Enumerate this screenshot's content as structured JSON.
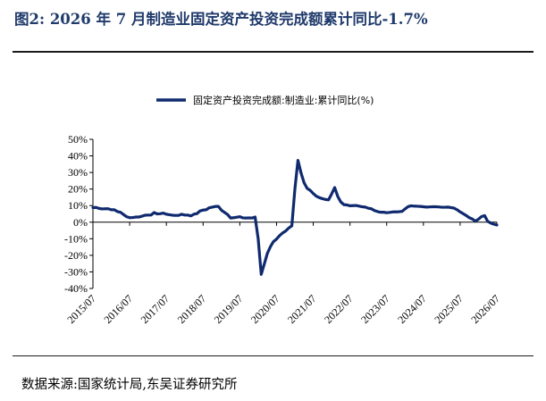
{
  "figure": {
    "title": "图2:  2026 年 7 月制造业固定资产投资完成额累计同比-1.7%",
    "source": "数据来源:国家统计局,东吴证券研究所"
  },
  "colors": {
    "line": "#0f2a6e",
    "title": "#1f3a6b"
  },
  "chart_data": {
    "type": "line",
    "title": "",
    "xlabel": "",
    "ylabel": "",
    "ylim": [
      -40,
      50
    ],
    "grid": false,
    "legend_position": "top-center",
    "y_tick_labels": [
      "50%",
      "40%",
      "30%",
      "20%",
      "10%",
      "0%",
      "-10%",
      "-20%",
      "-30%",
      "-40%"
    ],
    "y_tick_values": [
      50,
      40,
      30,
      20,
      10,
      0,
      -10,
      -20,
      -30,
      -40
    ],
    "x_tick_labels": [
      "2015/07",
      "2016/07",
      "2017/07",
      "2018/07",
      "2019/07",
      "2020/07",
      "2021/07",
      "2022/07",
      "2023/07",
      "2024/07",
      "2025/07",
      "2026/07"
    ],
    "x_range": [
      "2015/07",
      "2026/07"
    ],
    "series": [
      {
        "name": "固定资产投资完成额:制造业:累计同比(%)",
        "points": [
          [
            "2015/07",
            8.8
          ],
          [
            "2015/08",
            8.9
          ],
          [
            "2015/09",
            8.3
          ],
          [
            "2015/10",
            8.0
          ],
          [
            "2015/11",
            8.1
          ],
          [
            "2015/12",
            8.1
          ],
          [
            "2016/01",
            7.5
          ],
          [
            "2016/02",
            7.5
          ],
          [
            "2016/03",
            6.4
          ],
          [
            "2016/04",
            6.0
          ],
          [
            "2016/05",
            4.6
          ],
          [
            "2016/06",
            3.3
          ],
          [
            "2016/07",
            2.7
          ],
          [
            "2016/08",
            2.8
          ],
          [
            "2016/09",
            3.1
          ],
          [
            "2016/10",
            3.1
          ],
          [
            "2016/11",
            3.6
          ],
          [
            "2016/12",
            4.2
          ],
          [
            "2017/01",
            4.3
          ],
          [
            "2017/02",
            4.3
          ],
          [
            "2017/03",
            5.8
          ],
          [
            "2017/04",
            5.0
          ],
          [
            "2017/05",
            5.1
          ],
          [
            "2017/06",
            5.5
          ],
          [
            "2017/07",
            4.8
          ],
          [
            "2017/08",
            4.5
          ],
          [
            "2017/09",
            4.2
          ],
          [
            "2017/10",
            4.1
          ],
          [
            "2017/11",
            4.1
          ],
          [
            "2017/12",
            4.8
          ],
          [
            "2018/01",
            4.3
          ],
          [
            "2018/02",
            4.3
          ],
          [
            "2018/03",
            3.8
          ],
          [
            "2018/04",
            4.8
          ],
          [
            "2018/05",
            5.2
          ],
          [
            "2018/06",
            6.8
          ],
          [
            "2018/07",
            7.3
          ],
          [
            "2018/08",
            7.5
          ],
          [
            "2018/09",
            8.7
          ],
          [
            "2018/10",
            9.1
          ],
          [
            "2018/11",
            9.5
          ],
          [
            "2018/12",
            9.5
          ],
          [
            "2019/01",
            7.2
          ],
          [
            "2019/02",
            5.9
          ],
          [
            "2019/03",
            4.6
          ],
          [
            "2019/04",
            2.5
          ],
          [
            "2019/05",
            2.7
          ],
          [
            "2019/06",
            3.0
          ],
          [
            "2019/07",
            3.3
          ],
          [
            "2019/08",
            2.6
          ],
          [
            "2019/09",
            2.5
          ],
          [
            "2019/10",
            2.6
          ],
          [
            "2019/11",
            2.5
          ],
          [
            "2019/12",
            3.1
          ],
          [
            "2020/01",
            -10.0
          ],
          [
            "2020/02",
            -31.5
          ],
          [
            "2020/03",
            -25.2
          ],
          [
            "2020/04",
            -18.8
          ],
          [
            "2020/05",
            -14.8
          ],
          [
            "2020/06",
            -11.7
          ],
          [
            "2020/07",
            -10.2
          ],
          [
            "2020/08",
            -8.1
          ],
          [
            "2020/09",
            -6.5
          ],
          [
            "2020/10",
            -5.3
          ],
          [
            "2020/11",
            -3.5
          ],
          [
            "2020/12",
            -2.2
          ],
          [
            "2021/01",
            20.0
          ],
          [
            "2021/02",
            37.3
          ],
          [
            "2021/03",
            29.8
          ],
          [
            "2021/04",
            23.8
          ],
          [
            "2021/05",
            20.4
          ],
          [
            "2021/06",
            19.2
          ],
          [
            "2021/07",
            17.3
          ],
          [
            "2021/08",
            15.7
          ],
          [
            "2021/09",
            14.8
          ],
          [
            "2021/10",
            14.2
          ],
          [
            "2021/11",
            13.7
          ],
          [
            "2021/12",
            13.5
          ],
          [
            "2022/01",
            17.0
          ],
          [
            "2022/02",
            20.9
          ],
          [
            "2022/03",
            15.6
          ],
          [
            "2022/04",
            12.2
          ],
          [
            "2022/05",
            10.6
          ],
          [
            "2022/06",
            10.4
          ],
          [
            "2022/07",
            9.9
          ],
          [
            "2022/08",
            10.0
          ],
          [
            "2022/09",
            10.1
          ],
          [
            "2022/10",
            9.7
          ],
          [
            "2022/11",
            9.3
          ],
          [
            "2022/12",
            9.1
          ],
          [
            "2023/01",
            8.4
          ],
          [
            "2023/02",
            8.1
          ],
          [
            "2023/03",
            7.0
          ],
          [
            "2023/04",
            6.4
          ],
          [
            "2023/05",
            6.0
          ],
          [
            "2023/06",
            6.0
          ],
          [
            "2023/07",
            5.7
          ],
          [
            "2023/08",
            5.9
          ],
          [
            "2023/09",
            6.2
          ],
          [
            "2023/10",
            6.2
          ],
          [
            "2023/11",
            6.3
          ],
          [
            "2023/12",
            6.5
          ],
          [
            "2024/01",
            8.0
          ],
          [
            "2024/02",
            9.4
          ],
          [
            "2024/03",
            9.9
          ],
          [
            "2024/04",
            9.7
          ],
          [
            "2024/05",
            9.6
          ],
          [
            "2024/06",
            9.5
          ],
          [
            "2024/07",
            9.3
          ],
          [
            "2024/08",
            9.1
          ],
          [
            "2024/09",
            9.2
          ],
          [
            "2024/10",
            9.3
          ],
          [
            "2024/11",
            9.3
          ],
          [
            "2024/12",
            9.2
          ],
          [
            "2025/01",
            9.0
          ],
          [
            "2025/02",
            9.0
          ],
          [
            "2025/03",
            9.1
          ],
          [
            "2025/04",
            8.8
          ],
          [
            "2025/05",
            8.5
          ],
          [
            "2025/06",
            7.5
          ],
          [
            "2025/07",
            6.2
          ],
          [
            "2025/08",
            5.1
          ],
          [
            "2025/09",
            4.0
          ],
          [
            "2025/10",
            2.7
          ],
          [
            "2025/11",
            1.9
          ],
          [
            "2025/12",
            0.6
          ],
          [
            "2026/01",
            1.8
          ],
          [
            "2026/02",
            3.4
          ],
          [
            "2026/03",
            4.0
          ],
          [
            "2026/04",
            0.5
          ],
          [
            "2026/05",
            -0.5
          ],
          [
            "2026/06",
            -1.2
          ],
          [
            "2026/07",
            -1.7
          ]
        ]
      }
    ]
  }
}
